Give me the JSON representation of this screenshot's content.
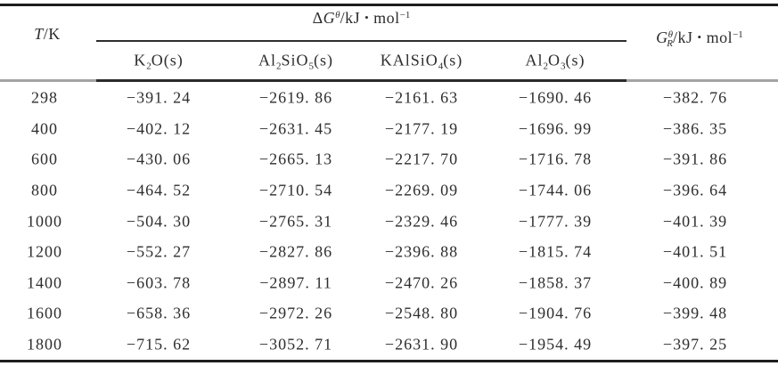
{
  "page": {
    "background": "#ffffff",
    "text_color": "#2d2d2d",
    "rule_color": "#1e1e1e"
  },
  "table": {
    "title_header": {
      "temperature": [
        {
          "v": "T",
          "i": 1
        },
        {
          "v": "/K"
        }
      ],
      "delta_g": [
        {
          "v": "Δ"
        },
        {
          "v": "G",
          "i": 1
        },
        {
          "t": "sup",
          "v": "θ",
          "i": 1
        },
        {
          "v": "/kJ"
        },
        {
          "v": "•",
          "c": "dot"
        },
        {
          "v": "mol"
        },
        {
          "t": "sup",
          "v": "−1"
        }
      ],
      "gibbs_r": [
        {
          "v": "G",
          "i": 1
        },
        {
          "t": "sup",
          "v": "θ",
          "i": 1
        },
        {
          "t": "sub",
          "v": "R",
          "i": 1,
          "c": "pull"
        },
        {
          "v": "/kJ"
        },
        {
          "v": "•",
          "c": "dot"
        },
        {
          "v": "mol"
        },
        {
          "t": "sup",
          "v": "−1"
        }
      ]
    },
    "species_headers": {
      "k2o": [
        {
          "v": "K"
        },
        {
          "t": "sub",
          "v": "2"
        },
        {
          "v": "O(s)"
        }
      ],
      "al2sio5": [
        {
          "v": "Al"
        },
        {
          "t": "sub",
          "v": "2"
        },
        {
          "v": "SiO"
        },
        {
          "t": "sub",
          "v": "5"
        },
        {
          "v": "(s)"
        }
      ],
      "kalsio4": [
        {
          "v": "KAlSiO"
        },
        {
          "t": "sub",
          "v": "4"
        },
        {
          "v": "(s)"
        }
      ],
      "al2o3": [
        {
          "v": "Al"
        },
        {
          "t": "sub",
          "v": "2"
        },
        {
          "v": "O"
        },
        {
          "t": "sub",
          "v": "3"
        },
        {
          "v": "(s)"
        }
      ]
    },
    "rows": [
      [
        "298",
        "−391. 24",
        "−2619. 86",
        "−2161. 63",
        "−1690. 46",
        "−382. 76"
      ],
      [
        "400",
        "−402. 12",
        "−2631. 45",
        "−2177. 19",
        "−1696. 99",
        "−386. 35"
      ],
      [
        "600",
        "−430. 06",
        "−2665. 13",
        "−2217. 70",
        "−1716. 78",
        "−391. 86"
      ],
      [
        "800",
        "−464. 52",
        "−2710. 54",
        "−2269. 09",
        "−1744. 06",
        "−396. 64"
      ],
      [
        "1000",
        "−504. 30",
        "−2765. 31",
        "−2329. 46",
        "−1777. 39",
        "−401. 39"
      ],
      [
        "1200",
        "−552. 27",
        "−2827. 86",
        "−2396. 88",
        "−1815. 74",
        "−401. 51"
      ],
      [
        "1400",
        "−603. 78",
        "−2897. 11",
        "−2470. 26",
        "−1858. 37",
        "−400. 89"
      ],
      [
        "1600",
        "−658. 36",
        "−2972. 26",
        "−2548. 80",
        "−1904. 76",
        "−399. 48"
      ],
      [
        "1800",
        "−715. 62",
        "−3052. 71",
        "−2631. 90",
        "−1954. 49",
        "−397. 25"
      ]
    ]
  }
}
